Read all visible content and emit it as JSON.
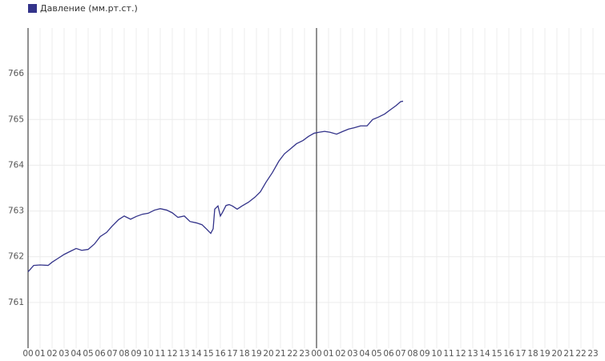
{
  "chart_data": {
    "type": "line",
    "series": [
      {
        "name": "Давление (мм.рт.ст.)",
        "color": "#33338a",
        "x": [
          0,
          0.47,
          1,
          1.67,
          2,
          2.47,
          3,
          3.53,
          4,
          4.47,
          5,
          5.53,
          6,
          6.53,
          7,
          7.53,
          8,
          8.53,
          9,
          9.53,
          10,
          10.53,
          11,
          11.53,
          12,
          12.47,
          13,
          13.47,
          14,
          14.47,
          14.87,
          15.2,
          15.4,
          15.53,
          15.8,
          16,
          16.2,
          16.47,
          16.73,
          17,
          17.4,
          17.8,
          18.33,
          18.87,
          19.33,
          19.8,
          20.33,
          20.87,
          21.33,
          21.8,
          22.33,
          22.87,
          23.33,
          23.8,
          24.2,
          24.67,
          25.13,
          25.67,
          26.2,
          26.67,
          27.13,
          27.67,
          28.2,
          28.67,
          29.13,
          29.67,
          30.13,
          30.6,
          31,
          31.2
        ],
        "values": [
          761.67,
          761.81,
          761.82,
          761.81,
          761.88,
          761.96,
          762.05,
          762.12,
          762.18,
          762.14,
          762.16,
          762.28,
          762.44,
          762.53,
          762.67,
          762.81,
          762.89,
          762.82,
          762.88,
          762.93,
          762.95,
          763.02,
          763.05,
          763.02,
          762.96,
          762.86,
          762.89,
          762.77,
          762.74,
          762.7,
          762.6,
          762.51,
          762.61,
          763.04,
          763.11,
          762.89,
          762.98,
          763.12,
          763.14,
          763.11,
          763.04,
          763.11,
          763.19,
          763.3,
          763.42,
          763.63,
          763.84,
          764.09,
          764.25,
          764.35,
          764.47,
          764.54,
          764.63,
          764.7,
          764.72,
          764.74,
          764.72,
          764.68,
          764.74,
          764.79,
          764.82,
          764.86,
          764.86,
          765.0,
          765.05,
          765.12,
          765.21,
          765.3,
          765.39,
          765.4
        ]
      }
    ],
    "xlim": [
      0,
      48
    ],
    "xticks": [
      {
        "value": 0,
        "label": "00"
      },
      {
        "value": 1,
        "label": "01"
      },
      {
        "value": 2,
        "label": "02"
      },
      {
        "value": 3,
        "label": "03"
      },
      {
        "value": 4,
        "label": "04"
      },
      {
        "value": 5,
        "label": "05"
      },
      {
        "value": 6,
        "label": "06"
      },
      {
        "value": 7,
        "label": "07"
      },
      {
        "value": 8,
        "label": "08"
      },
      {
        "value": 9,
        "label": "09"
      },
      {
        "value": 10,
        "label": "10"
      },
      {
        "value": 11,
        "label": "11"
      },
      {
        "value": 12,
        "label": "12"
      },
      {
        "value": 13,
        "label": "13"
      },
      {
        "value": 14,
        "label": "14"
      },
      {
        "value": 15,
        "label": "15"
      },
      {
        "value": 16,
        "label": "16"
      },
      {
        "value": 17,
        "label": "17"
      },
      {
        "value": 18,
        "label": "18"
      },
      {
        "value": 19,
        "label": "19"
      },
      {
        "value": 20,
        "label": "20"
      },
      {
        "value": 21,
        "label": "21"
      },
      {
        "value": 22,
        "label": "22"
      },
      {
        "value": 23,
        "label": "23"
      },
      {
        "value": 24,
        "label": "00"
      },
      {
        "value": 25,
        "label": "01"
      },
      {
        "value": 26,
        "label": "02"
      },
      {
        "value": 27,
        "label": "03"
      },
      {
        "value": 28,
        "label": "04"
      },
      {
        "value": 29,
        "label": "05"
      },
      {
        "value": 30,
        "label": "06"
      },
      {
        "value": 31,
        "label": "07"
      },
      {
        "value": 32,
        "label": "08"
      },
      {
        "value": 33,
        "label": "09"
      },
      {
        "value": 34,
        "label": "10"
      },
      {
        "value": 35,
        "label": "11"
      },
      {
        "value": 36,
        "label": "12"
      },
      {
        "value": 37,
        "label": "13"
      },
      {
        "value": 38,
        "label": "14"
      },
      {
        "value": 39,
        "label": "15"
      },
      {
        "value": 40,
        "label": "16"
      },
      {
        "value": 41,
        "label": "17"
      },
      {
        "value": 42,
        "label": "18"
      },
      {
        "value": 43,
        "label": "19"
      },
      {
        "value": 44,
        "label": "20"
      },
      {
        "value": 45,
        "label": "21"
      },
      {
        "value": 46,
        "label": "22"
      },
      {
        "value": 47,
        "label": "23"
      }
    ],
    "ylim": [
      760,
      767
    ],
    "yticks": [
      761,
      762,
      763,
      764,
      765,
      766
    ],
    "grid": true
  }
}
